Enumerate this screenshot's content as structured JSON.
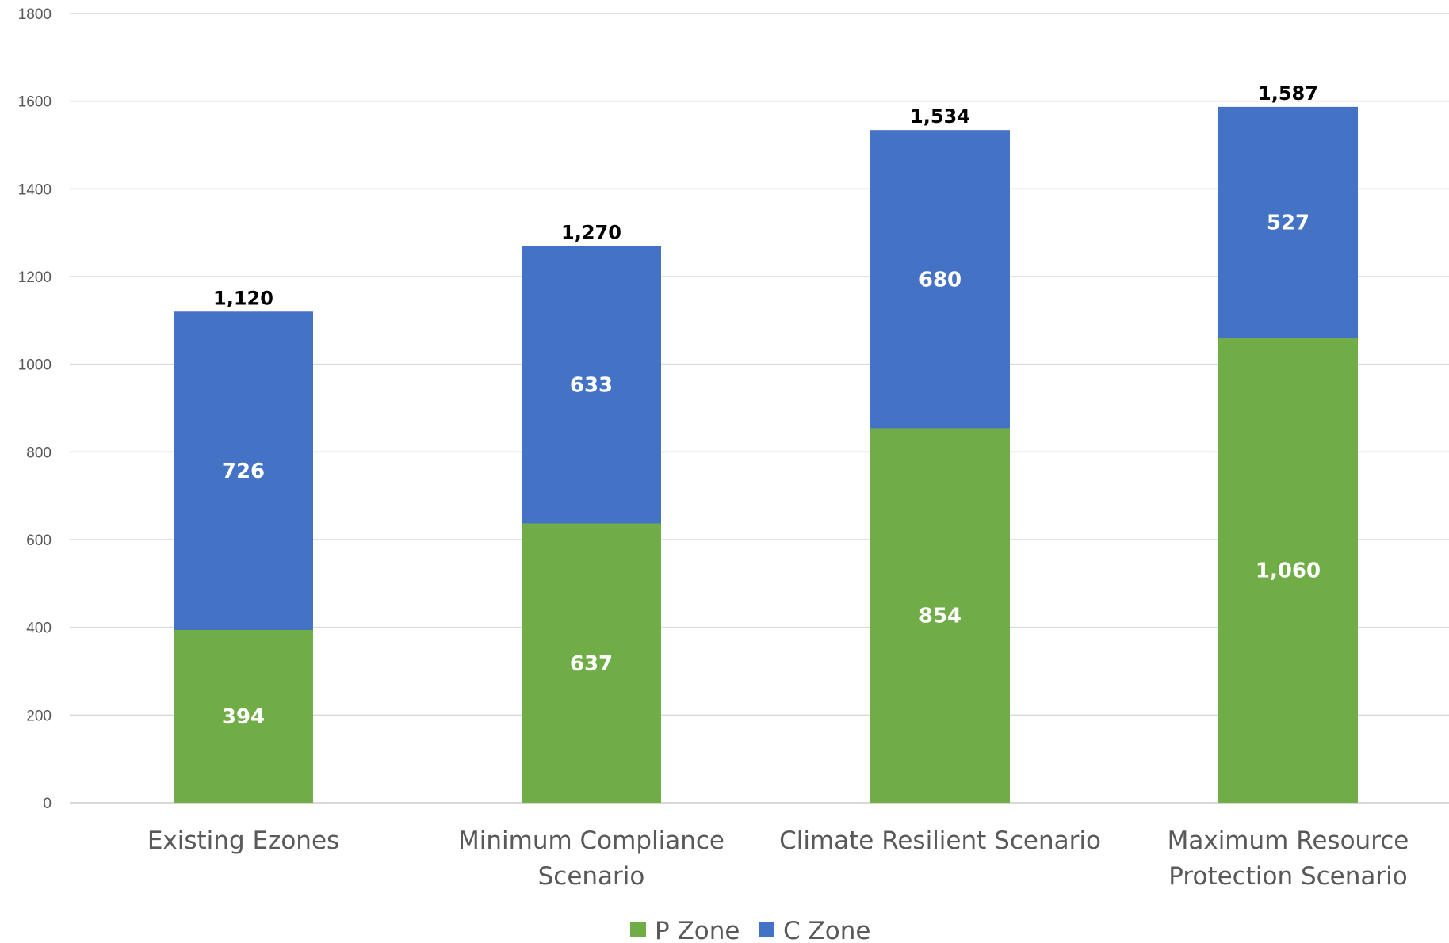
{
  "chart_data": {
    "type": "bar",
    "stacked": true,
    "title": "",
    "xlabel": "",
    "ylabel": "",
    "ylim": [
      0,
      1800
    ],
    "y_ticks": [
      "0",
      "200",
      "400",
      "600",
      "800",
      "1000",
      "1200",
      "1400",
      "1600",
      "1800"
    ],
    "grid": true,
    "legend_position": "bottom",
    "categories": [
      [
        "Existing Ezones"
      ],
      [
        "Minimum Compliance",
        "Scenario"
      ],
      [
        "Climate Resilient Scenario"
      ],
      [
        "Maximum Resource",
        "Protection Scenario"
      ]
    ],
    "series": [
      {
        "name": "P Zone",
        "color": "#70ad47",
        "values": [
          394,
          637,
          854,
          1060
        ],
        "labels": [
          "394",
          "637",
          "854",
          "1,060"
        ]
      },
      {
        "name": "C Zone",
        "color": "#4472c4",
        "values": [
          726,
          633,
          680,
          527
        ],
        "labels": [
          "726",
          "633",
          "680",
          "527"
        ]
      }
    ],
    "totals": [
      1120,
      1270,
      1534,
      1587
    ],
    "total_labels": [
      "1,120",
      "1,270",
      "1,534",
      "1,587"
    ]
  }
}
